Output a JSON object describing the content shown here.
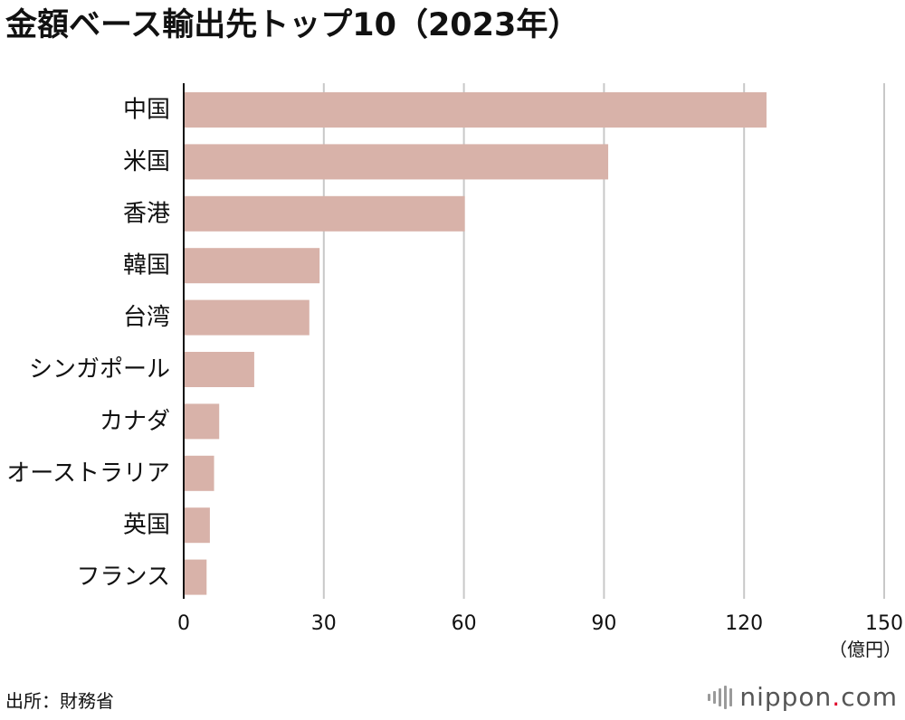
{
  "title": "金額ベース輸出先トップ10（2023年）",
  "unit": "（億円）",
  "source": "出所：財務省",
  "logo": {
    "prefix": "nippon",
    "dot": ".",
    "suffix": "com"
  },
  "colors": {
    "bar": "#d8b2a9",
    "grid": "#c8c8c8",
    "axis": "#111111",
    "logo_dot": "#e0002a"
  },
  "chart_data": {
    "type": "bar",
    "orientation": "horizontal",
    "categories": [
      "中国",
      "米国",
      "香港",
      "韓国",
      "台湾",
      "シンガポール",
      "カナダ",
      "オーストラリア",
      "英国",
      "フランス"
    ],
    "values": [
      124.8,
      90.9,
      60.2,
      29.1,
      26.9,
      15.1,
      7.6,
      6.5,
      5.6,
      4.9
    ],
    "xlim": [
      0,
      150
    ],
    "xticks": [
      0,
      30,
      60,
      90,
      120,
      150
    ],
    "grid": true
  }
}
